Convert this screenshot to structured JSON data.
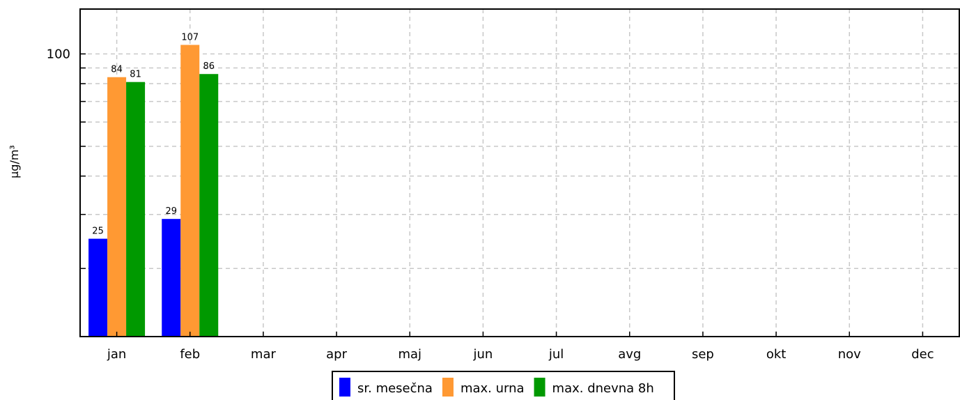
{
  "chart_data": {
    "type": "bar",
    "yscale": "log",
    "ylabel": "µg/m³",
    "ylim": [
      12,
      140
    ],
    "yticks_labeled": [
      100
    ],
    "yticks_minor": [
      20,
      30,
      40,
      50,
      60,
      70,
      80,
      90
    ],
    "grid": true,
    "legend_position": "bottom-center",
    "categories": [
      "jan",
      "feb",
      "mar",
      "apr",
      "maj",
      "jun",
      "jul",
      "avg",
      "sep",
      "okt",
      "nov",
      "dec"
    ],
    "series": [
      {
        "name": "sr. mesečna",
        "color": "#0000ff",
        "values": [
          25,
          29,
          null,
          null,
          null,
          null,
          null,
          null,
          null,
          null,
          null,
          null
        ]
      },
      {
        "name": "max. urna",
        "color": "#ff9933",
        "values": [
          84,
          107,
          null,
          null,
          null,
          null,
          null,
          null,
          null,
          null,
          null,
          null
        ]
      },
      {
        "name": "max. dnevna 8h",
        "color": "#009900",
        "values": [
          81,
          86,
          null,
          null,
          null,
          null,
          null,
          null,
          null,
          null,
          null,
          null
        ]
      }
    ]
  }
}
